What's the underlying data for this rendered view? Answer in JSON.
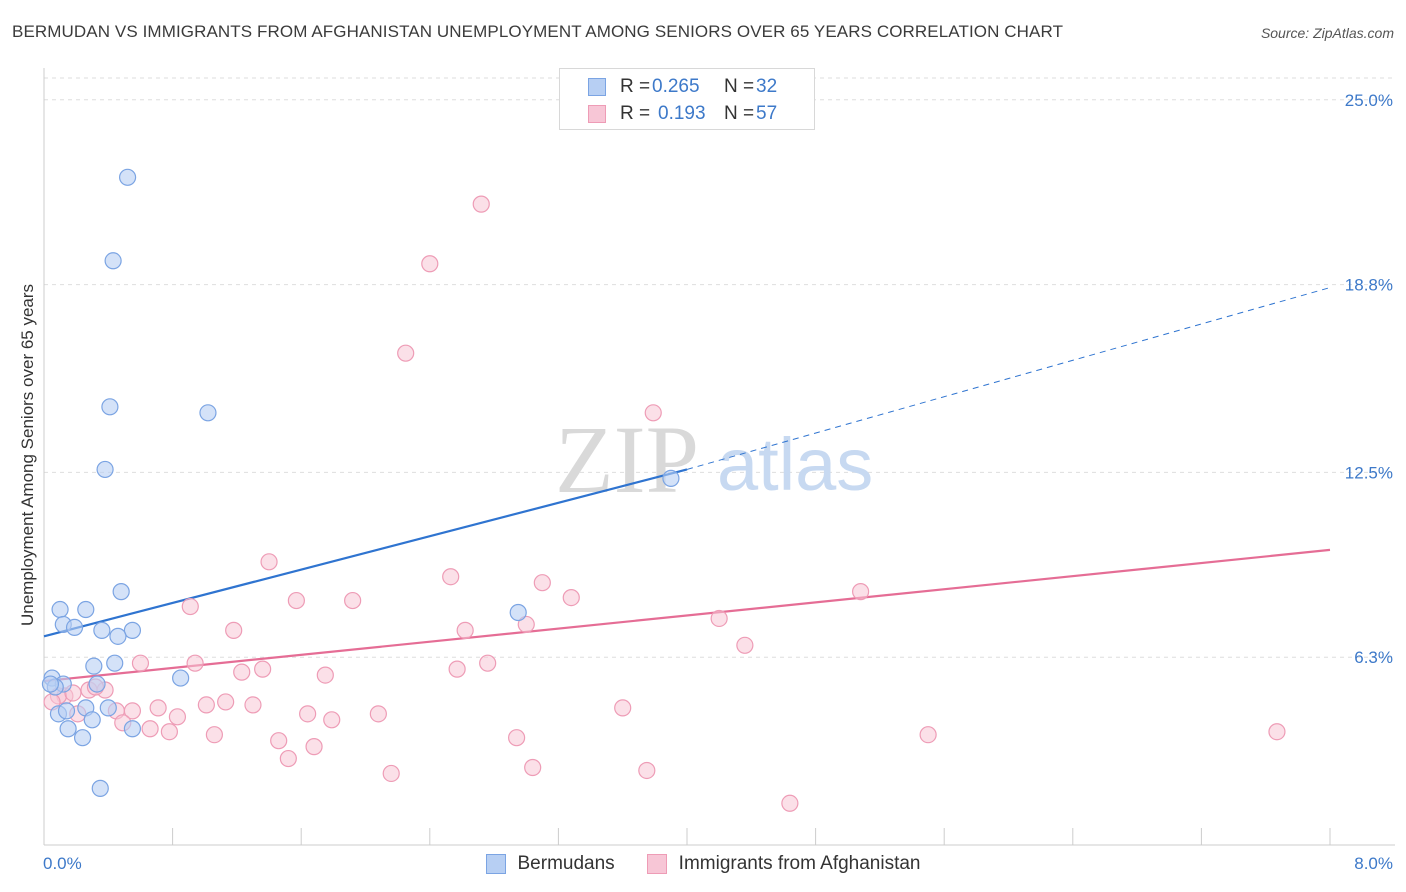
{
  "title": "BERMUDAN VS IMMIGRANTS FROM AFGHANISTAN UNEMPLOYMENT AMONG SENIORS OVER 65 YEARS CORRELATION CHART",
  "source": "Source: ZipAtlas.com",
  "legend": {
    "rows": [
      {
        "r_label": "R =",
        "r_value": "0.265",
        "n_label": "N =",
        "n_value": "32"
      },
      {
        "r_label": "R =",
        "r_value": "0.193",
        "n_label": "N =",
        "n_value": "57"
      }
    ]
  },
  "bottom_legend": [
    "Bermudans",
    "Immigrants from Afghanistan"
  ],
  "watermark": {
    "zip": "ZIP",
    "atlas": "atlas"
  },
  "colors": {
    "blue_fill": "#b7cff3",
    "blue_stroke": "#7ba4e3",
    "blue_line": "#2f74d0",
    "pink_fill": "#f7c6d6",
    "pink_stroke": "#ee9cb6",
    "pink_line": "#e56d95",
    "axis_label": "#3d79c9",
    "grid": "#dedede"
  },
  "chart_data": {
    "type": "scatter",
    "title": "BERMUDAN VS IMMIGRANTS FROM AFGHANISTAN UNEMPLOYMENT AMONG SENIORS OVER 65 YEARS CORRELATION CHART",
    "xlabel": "",
    "ylabel": "Unemployment Among Seniors over 65 years",
    "xlim": [
      0,
      8
    ],
    "ylim": [
      0,
      26
    ],
    "x_tick_labels": [
      "0.0%",
      "8.0%"
    ],
    "y_ticks": [
      6.3,
      12.5,
      18.8,
      25.0
    ],
    "y_tick_labels": [
      "6.3%",
      "12.5%",
      "18.8%",
      "25.0%"
    ],
    "series": [
      {
        "name": "Bermudans",
        "r": 0.265,
        "n": 32,
        "trend": {
          "x0": 0,
          "y0": 7.0,
          "x1": 4.0,
          "y1": 12.6,
          "extend_to_x": 8.0,
          "extend_y": 18.7
        },
        "points": [
          [
            0.52,
            22.4
          ],
          [
            0.43,
            19.6
          ],
          [
            0.41,
            14.7
          ],
          [
            1.02,
            14.5
          ],
          [
            0.38,
            12.6
          ],
          [
            3.9,
            12.3
          ],
          [
            0.48,
            8.5
          ],
          [
            0.1,
            7.9
          ],
          [
            0.26,
            7.9
          ],
          [
            0.12,
            7.4
          ],
          [
            0.19,
            7.3
          ],
          [
            0.36,
            7.2
          ],
          [
            0.55,
            7.2
          ],
          [
            0.46,
            7.0
          ],
          [
            0.44,
            6.1
          ],
          [
            0.31,
            6.0
          ],
          [
            0.85,
            5.6
          ],
          [
            2.95,
            7.8
          ],
          [
            0.05,
            5.6
          ],
          [
            0.12,
            5.4
          ],
          [
            0.07,
            5.3
          ],
          [
            0.33,
            5.4
          ],
          [
            0.09,
            4.4
          ],
          [
            0.14,
            4.5
          ],
          [
            0.26,
            4.6
          ],
          [
            0.4,
            4.6
          ],
          [
            0.3,
            4.2
          ],
          [
            0.15,
            3.9
          ],
          [
            0.55,
            3.9
          ],
          [
            0.24,
            3.6
          ],
          [
            0.35,
            1.9
          ],
          [
            0.04,
            5.4
          ]
        ]
      },
      {
        "name": "Immigrants from Afghanistan",
        "r": 0.193,
        "n": 57,
        "trend": {
          "x0": 0,
          "y0": 5.5,
          "x1": 8.0,
          "y1": 9.9
        },
        "points": [
          [
            2.72,
            21.5
          ],
          [
            2.4,
            19.5
          ],
          [
            2.25,
            16.5
          ],
          [
            3.79,
            14.5
          ],
          [
            1.4,
            9.5
          ],
          [
            2.53,
            9.0
          ],
          [
            3.1,
            8.8
          ],
          [
            3.28,
            8.3
          ],
          [
            1.57,
            8.2
          ],
          [
            1.92,
            8.2
          ],
          [
            5.08,
            8.5
          ],
          [
            0.91,
            8.0
          ],
          [
            3.0,
            7.4
          ],
          [
            4.2,
            7.6
          ],
          [
            1.18,
            7.2
          ],
          [
            2.62,
            7.2
          ],
          [
            4.36,
            6.7
          ],
          [
            0.6,
            6.1
          ],
          [
            0.94,
            6.1
          ],
          [
            2.76,
            6.1
          ],
          [
            1.36,
            5.9
          ],
          [
            2.57,
            5.9
          ],
          [
            1.23,
            5.8
          ],
          [
            1.75,
            5.7
          ],
          [
            0.13,
            5.0
          ],
          [
            0.28,
            5.2
          ],
          [
            0.38,
            5.2
          ],
          [
            0.71,
            4.6
          ],
          [
            1.01,
            4.7
          ],
          [
            1.13,
            4.8
          ],
          [
            1.3,
            4.7
          ],
          [
            3.6,
            4.6
          ],
          [
            0.45,
            4.5
          ],
          [
            0.55,
            4.5
          ],
          [
            0.21,
            4.4
          ],
          [
            0.83,
            4.3
          ],
          [
            1.64,
            4.4
          ],
          [
            2.08,
            4.4
          ],
          [
            1.79,
            4.2
          ],
          [
            0.49,
            4.1
          ],
          [
            0.66,
            3.9
          ],
          [
            0.78,
            3.8
          ],
          [
            1.06,
            3.7
          ],
          [
            2.94,
            3.6
          ],
          [
            5.5,
            3.7
          ],
          [
            7.67,
            3.8
          ],
          [
            1.46,
            3.5
          ],
          [
            1.68,
            3.3
          ],
          [
            1.52,
            2.9
          ],
          [
            3.04,
            2.6
          ],
          [
            2.16,
            2.4
          ],
          [
            3.75,
            2.5
          ],
          [
            4.64,
            1.4
          ],
          [
            0.09,
            5.0
          ],
          [
            0.18,
            5.1
          ],
          [
            0.32,
            5.3
          ],
          [
            0.05,
            4.8
          ]
        ]
      }
    ]
  }
}
